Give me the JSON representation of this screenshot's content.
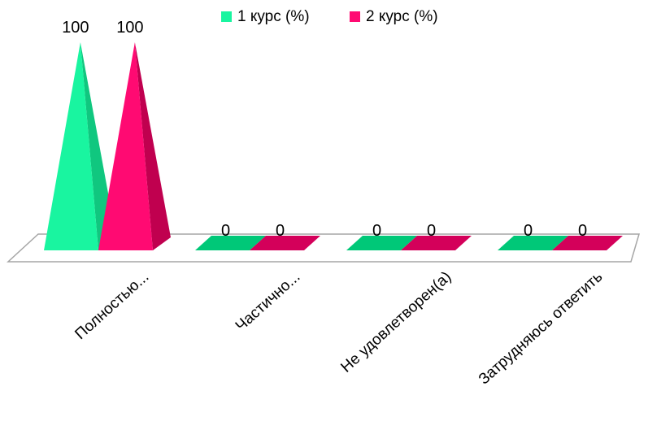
{
  "chart_data": {
    "type": "bar",
    "style": "3d-pyramid",
    "categories": [
      "Полностью...",
      "Частично...",
      "Не удовлетворен(а)",
      "Затрудняюсь ответить"
    ],
    "series": [
      {
        "name": "1 курс (%)",
        "values": [
          100,
          0,
          0,
          0
        ],
        "color": "#19f5a0",
        "side_color": "#10c77f",
        "top_color": "#00c878"
      },
      {
        "name": "2 курс (%)",
        "values": [
          100,
          0,
          0,
          0
        ],
        "color": "#ff0a72",
        "side_color": "#c0004f",
        "top_color": "#d4005a"
      }
    ],
    "ylim": [
      0,
      100
    ],
    "legend": "top",
    "grid": false,
    "data_labels": true,
    "xlabel": "",
    "ylabel": "",
    "title": ""
  }
}
